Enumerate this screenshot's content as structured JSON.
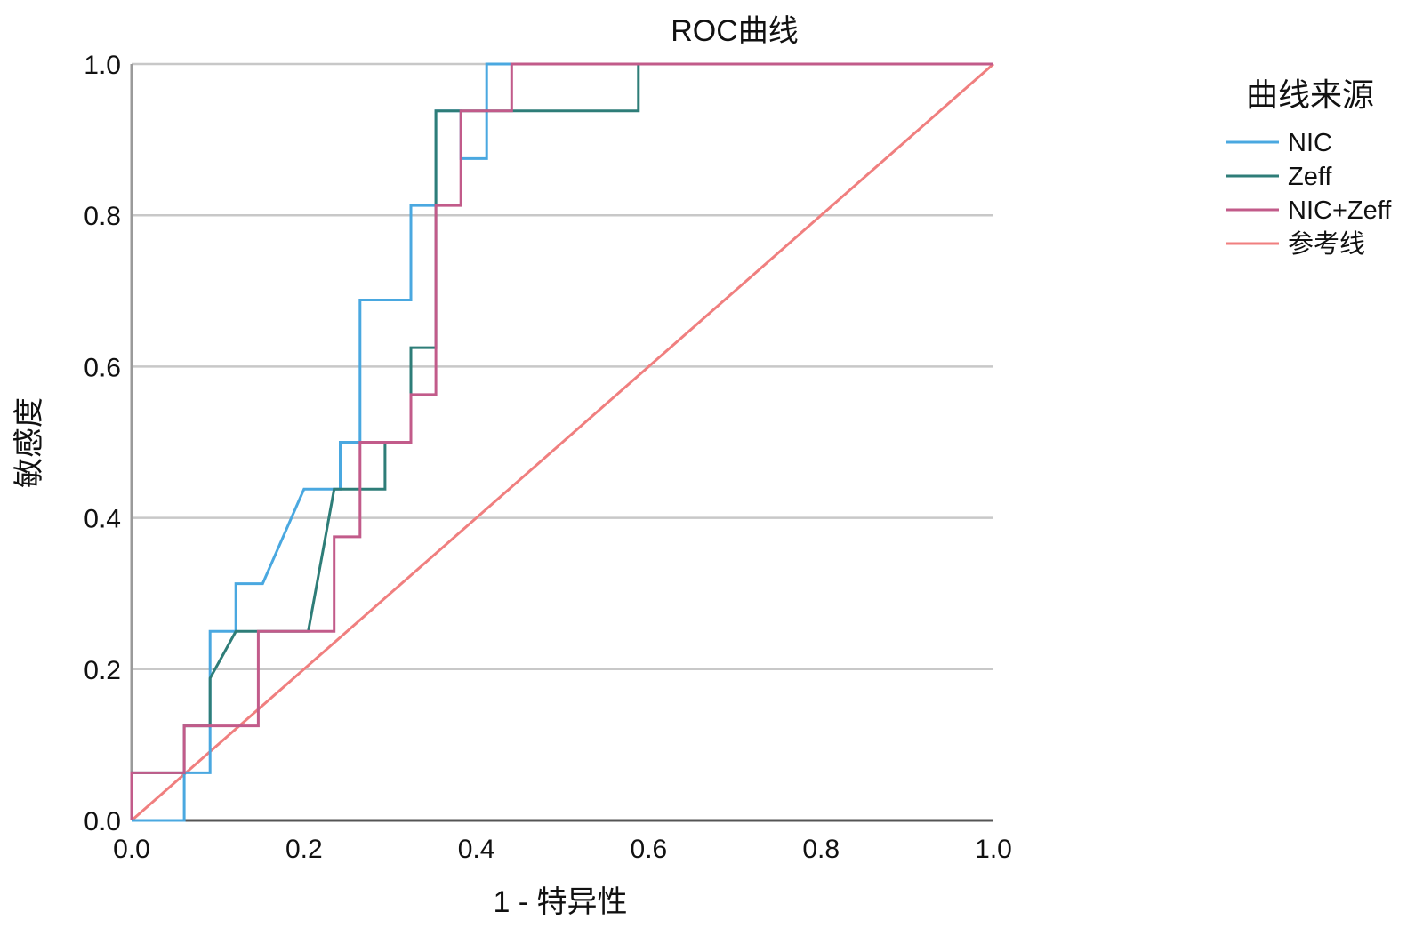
{
  "chart_data": {
    "type": "line",
    "title": "ROC曲线",
    "xlabel": "1 - 特异性",
    "ylabel": "敏感度",
    "xlim": [
      0,
      1
    ],
    "ylim": [
      0,
      1
    ],
    "xticks": [
      "0.0",
      "0.2",
      "0.4",
      "0.6",
      "0.8",
      "1.0"
    ],
    "yticks": [
      "0.0",
      "0.2",
      "0.4",
      "0.6",
      "0.8",
      "1.0"
    ],
    "grid": "horizontal",
    "legend": {
      "title": "曲线来源",
      "placement": "right"
    },
    "series": [
      {
        "name": "NIC",
        "color": "#4aa8e0",
        "points": [
          [
            0,
            0
          ],
          [
            0.061,
            0
          ],
          [
            0.061,
            0.063
          ],
          [
            0.091,
            0.063
          ],
          [
            0.091,
            0.25
          ],
          [
            0.121,
            0.25
          ],
          [
            0.121,
            0.313
          ],
          [
            0.152,
            0.313
          ],
          [
            0.2,
            0.438
          ],
          [
            0.242,
            0.438
          ],
          [
            0.242,
            0.5
          ],
          [
            0.265,
            0.5
          ],
          [
            0.265,
            0.688
          ],
          [
            0.324,
            0.688
          ],
          [
            0.324,
            0.813
          ],
          [
            0.353,
            0.813
          ],
          [
            0.353,
            0.938
          ],
          [
            0.382,
            0.938
          ],
          [
            0.382,
            0.875
          ],
          [
            0.412,
            0.875
          ],
          [
            0.412,
            1.0
          ],
          [
            1.0,
            1.0
          ]
        ]
      },
      {
        "name": "Zeff",
        "color": "#2e7d78",
        "points": [
          [
            0,
            0
          ],
          [
            0,
            0.063
          ],
          [
            0.061,
            0.063
          ],
          [
            0.061,
            0.125
          ],
          [
            0.091,
            0.125
          ],
          [
            0.091,
            0.188
          ],
          [
            0.121,
            0.25
          ],
          [
            0.205,
            0.25
          ],
          [
            0.235,
            0.438
          ],
          [
            0.294,
            0.438
          ],
          [
            0.294,
            0.5
          ],
          [
            0.324,
            0.5
          ],
          [
            0.324,
            0.625
          ],
          [
            0.353,
            0.625
          ],
          [
            0.353,
            0.938
          ],
          [
            0.588,
            0.938
          ],
          [
            0.588,
            1.0
          ],
          [
            1.0,
            1.0
          ]
        ]
      },
      {
        "name": "NIC+Zeff",
        "color": "#c25b8a",
        "points": [
          [
            0,
            0
          ],
          [
            0,
            0.063
          ],
          [
            0.061,
            0.063
          ],
          [
            0.061,
            0.125
          ],
          [
            0.147,
            0.125
          ],
          [
            0.147,
            0.25
          ],
          [
            0.235,
            0.25
          ],
          [
            0.235,
            0.375
          ],
          [
            0.265,
            0.375
          ],
          [
            0.265,
            0.5
          ],
          [
            0.324,
            0.5
          ],
          [
            0.324,
            0.563
          ],
          [
            0.353,
            0.563
          ],
          [
            0.353,
            0.813
          ],
          [
            0.382,
            0.813
          ],
          [
            0.382,
            0.938
          ],
          [
            0.441,
            0.938
          ],
          [
            0.441,
            1.0
          ],
          [
            1.0,
            1.0
          ]
        ]
      },
      {
        "name": "参考线",
        "color": "#f07f7f",
        "points": [
          [
            0,
            0
          ],
          [
            1,
            1
          ]
        ]
      }
    ]
  }
}
